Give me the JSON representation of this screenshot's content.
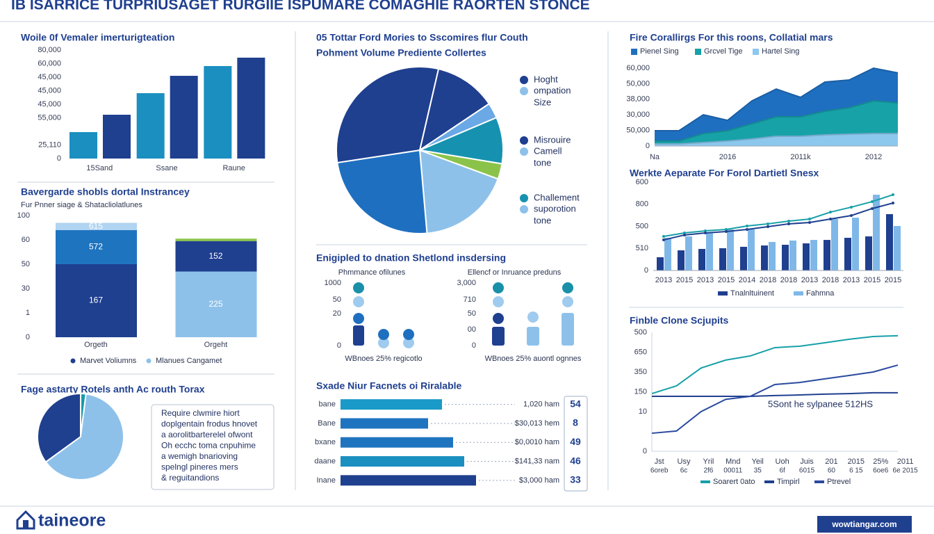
{
  "header": {
    "title": "IB ISARRICE TURPRIUSAGET RURGIIE ISPUMARE COMAGHIE RAORTEN STONCE"
  },
  "section_title": "Enigipled to dnation Shetlond insdersing",
  "note_box": {
    "lines": [
      "Require clwmire hiort",
      "doplgentain frodus hnovet",
      "a aorolitbarterelel ofwont",
      "Oh ecchc toma cnpuhime",
      "a wemigh bnarioving",
      "spelngl pineres mers",
      "& reguitandions"
    ]
  },
  "footer": {
    "logo": "taineore",
    "link": "wowtiangar.com"
  },
  "chart_data": [
    {
      "type": "bar",
      "title": "Woile 0f Vemaler imerturigteation",
      "categories": [
        "15Sand",
        "Ssane",
        "Raune"
      ],
      "series": [
        {
          "color": "#1a8fc0",
          "values": [
            19500,
            48200,
            68200
          ]
        },
        {
          "color": "#1f3f8f",
          "values": [
            32300,
            61000,
            74400
          ]
        }
      ],
      "ylim": [
        0,
        80000
      ],
      "yticks": [
        0,
        {
          "value": 10000,
          "label": "25,110"
        },
        {
          "value": 30000,
          "label": "55,000"
        },
        {
          "value": 40000,
          "label": "45,000"
        },
        {
          "value": 50000,
          "label": "45,000"
        },
        {
          "value": 60000,
          "label": "45,000"
        },
        {
          "value": 70000,
          "label": "60,000"
        },
        {
          "value": 80000,
          "label": "80,000"
        }
      ],
      "grid": false
    },
    {
      "type": "stacked_bar",
      "title": "Bavergarde shobls dortal Instrancey",
      "subtitle": "Fur Pnner siage & Shatacliolatlunes",
      "categories": [
        "Orgeth",
        "Orgeht"
      ],
      "series": [
        {
          "colors": [
            "#1f3f8f",
            "#8ec1ea"
          ],
          "values": [
            60,
            54
          ],
          "labels": [
            "167",
            "225"
          ]
        },
        {
          "colors": [
            "#1f74bf",
            "#1f3f8f"
          ],
          "values": [
            28,
            25
          ],
          "labels": [
            "572",
            "152"
          ]
        },
        {
          "colors": [
            "#b0d4f1",
            "#8bc34a"
          ],
          "values": [
            6,
            2
          ],
          "labels": [
            "615",
            null
          ]
        }
      ],
      "legend": [
        {
          "name": "Marvet Voliumns",
          "color": "#1f3f8f"
        },
        {
          "name": "Mlanues Cangamet",
          "color": "#8ec1ea"
        }
      ],
      "ylim": [
        0,
        100
      ],
      "yticks": [
        0,
        {
          "value": 20,
          "label": "1"
        },
        {
          "value": 40,
          "label": "30"
        },
        {
          "value": 60,
          "label": "50"
        },
        {
          "value": 80,
          "label": "60"
        },
        100
      ],
      "grid": false
    },
    {
      "type": "pie",
      "title": "Fage astarty Rotels anth Ac routh Torax",
      "values": [
        2,
        63,
        35
      ],
      "colors": [
        "#1a9aa8",
        "#8ec1ea",
        "#1f3f8f"
      ]
    },
    {
      "type": "pie",
      "title": "05 Tottar Ford Mories to Sscomires flur Couth",
      "subtitle": "Pohment Volume Prediente Collertes",
      "values": [
        12,
        3,
        9,
        3,
        18,
        24,
        31
      ],
      "colors": [
        "#1f3f8f",
        "#6aa8e6",
        "#1692b0",
        "#8bc34a",
        "#8ec1ea",
        "#1f6fc0",
        "#1f3f8f"
      ],
      "legend_groups": [
        {
          "colors": [
            "#1f3f8f",
            "#8ec1ea"
          ],
          "lines": [
            "Hoght",
            "ompation",
            "Size"
          ]
        },
        {
          "colors": [
            "#1f3f8f",
            "#8ec1ea"
          ],
          "lines": [
            "Misrouire",
            "Camell",
            "tone"
          ]
        },
        {
          "colors": [
            "#1692b0",
            "#8ec1ea"
          ],
          "lines": [
            "Challement",
            "suporotion",
            "tone"
          ]
        }
      ]
    },
    {
      "type": "dot_bar",
      "subtitle": "Phmmance ofilunes",
      "xlabel": "WBnoes 25% regicotlo",
      "ylim": [
        0,
        90
      ],
      "yticks": [
        0,
        {
          "value": 46,
          "label": "20"
        },
        {
          "value": 66,
          "label": "50"
        },
        {
          "value": 90,
          "label": "1000"
        }
      ],
      "series": [
        {
          "mark": "bar",
          "color": "#1f3f8f",
          "values": [
            29,
            null,
            null
          ]
        },
        {
          "mark": "dot",
          "color": "#1a8fa8",
          "values": [
            83,
            null,
            null
          ]
        },
        {
          "mark": "dot",
          "color": "#9fcbee",
          "values": [
            63,
            4,
            4
          ]
        },
        {
          "mark": "dot",
          "color": "#1f6fc0",
          "values": [
            39,
            16,
            16
          ]
        }
      ]
    },
    {
      "type": "dot_bar",
      "subtitle": "Ellencf or Inruance preduns",
      "xlabel": "WBnoes 25% auontl ognnes",
      "ylim": [
        0,
        90
      ],
      "yticks": [
        0,
        {
          "value": 23,
          "label": "00"
        },
        {
          "value": 46,
          "label": "50"
        },
        {
          "value": 66,
          "label": "710"
        },
        {
          "value": 90,
          "label": "3,000"
        }
      ],
      "series": [
        {
          "mark": "bar",
          "color": "#1f3f8f",
          "values": [
            27,
            null,
            null
          ]
        },
        {
          "mark": "bar",
          "color": "#8ec1ea",
          "values": [
            null,
            27,
            47
          ]
        },
        {
          "mark": "dot",
          "color": "#1a8fa8",
          "values": [
            83,
            null,
            83
          ]
        },
        {
          "mark": "dot",
          "color": "#9fcbee",
          "values": [
            63,
            41,
            63
          ]
        },
        {
          "mark": "dot",
          "color": "#1f3f8f",
          "values": [
            39,
            null,
            null
          ]
        }
      ]
    },
    {
      "type": "hbar",
      "title": "Sxade Niur Facnets oi Riralable",
      "categories": [
        "bane",
        "Bane",
        "bxane",
        "daane",
        "Inane"
      ],
      "values": [
        146,
        126,
        162,
        178,
        195
      ],
      "xlim": [
        0,
        200
      ],
      "colors": [
        "#1a9ac8",
        "#1f74bf",
        "#1f74bf",
        "#1a8fc0",
        "#1f3f8f"
      ],
      "amounts": [
        "1,020 ham",
        "$30,013 hem",
        "$0,0010 ham",
        "$141,33 nam",
        "$3,000 ham"
      ],
      "scores": [
        54,
        8,
        49,
        46,
        33
      ]
    },
    {
      "type": "area",
      "title": "Fire Corallirgs For this roons, Collatial mars",
      "categories": [
        "Na",
        null,
        null,
        "2016",
        null,
        null,
        "2011k",
        null,
        null,
        "2012",
        null
      ],
      "series": [
        {
          "name": "Pienel Sing",
          "color": "#1f6fc0",
          "values": [
            11800,
            11800,
            24100,
            19800,
            34800,
            43900,
            37500,
            49300,
            50900,
            60000,
            56300
          ]
        },
        {
          "name": "Grcvel Tige",
          "color": "#17a2a8",
          "values": [
            3800,
            3800,
            9600,
            11800,
            17100,
            22500,
            22500,
            26800,
            29500,
            34800,
            33200
          ]
        },
        {
          "name": "Hartel Sing",
          "color": "#8cc8ee",
          "values": [
            1600,
            1600,
            2700,
            3800,
            5400,
            7500,
            7500,
            8600,
            9100,
            9600,
            9600
          ]
        }
      ],
      "ylim": [
        0,
        60000
      ],
      "yticks": [
        0,
        {
          "value": 12000,
          "label": "50,000"
        },
        {
          "value": 24000,
          "label": "30,000"
        },
        {
          "value": 36000,
          "label": "38,000"
        },
        {
          "value": 48000,
          "label": "50,000"
        },
        {
          "value": 60000,
          "label": "60,000"
        }
      ],
      "grid": false
    },
    {
      "type": "combo",
      "title": "Werkte Aeparate For Forol Dartietl Snesx",
      "categories": [
        "2013",
        "2015",
        "2013",
        "2015",
        "2014",
        "2018",
        "2018",
        "2013",
        "2018",
        "2013",
        "2015",
        "2015"
      ],
      "series": [
        {
          "name": "Tnalnltuinent",
          "mark": "bar",
          "color": "#1f3f8f",
          "values": [
            150,
            228,
            244,
            252,
            268,
            283,
            291,
            307,
            346,
            370,
            386,
            638
          ]
        },
        {
          "name": "Fahmna",
          "mark": "bar",
          "color": "#7fb8e8",
          "values": [
            370,
            386,
            425,
            465,
            465,
            323,
            339,
            346,
            583,
            598,
            858,
            504
          ]
        },
        {
          "mark": "line",
          "color": "#17a0a8",
          "values": [
            386,
            425,
            449,
            465,
            504,
            528,
            559,
            583,
            661,
            717,
            780,
            858
          ]
        },
        {
          "mark": "line",
          "color": "#1f3f8f",
          "values": [
            346,
            402,
            425,
            441,
            465,
            496,
            528,
            543,
            583,
            622,
            701,
            764
          ]
        }
      ],
      "ylim": [
        0,
        1000
      ],
      "yticks": [
        0,
        {
          "value": 250,
          "label": "510"
        },
        {
          "value": 500,
          "label": "500"
        },
        {
          "value": 750,
          "label": "800"
        },
        {
          "value": 1000,
          "label": "600"
        }
      ],
      "grid": false
    },
    {
      "type": "line",
      "title": "Finble Clone Scjupits",
      "categories": [
        "Jst",
        "Usy",
        "Yril",
        "Mnd",
        "Yeil",
        "Uoh",
        "Juis",
        "201",
        "2015",
        "25%",
        "2011"
      ],
      "sublabels": [
        "6oreb",
        "6c",
        "2f6",
        "00011",
        "35",
        "6f",
        "6015",
        "60",
        "6 15",
        "6oe6",
        "6e 2015"
      ],
      "series": [
        {
          "name": "Soarert 0ato",
          "color": "#17a0a8",
          "values": [
            291,
            330,
            420,
            460,
            481,
            523,
            530,
            547,
            565,
            579,
            583
          ]
        },
        {
          "name": "Timpirl",
          "color": "#1f3f8f",
          "values": [
            277,
            277,
            277,
            277,
            277,
            281,
            284,
            288,
            291,
            295,
            295
          ]
        },
        {
          "name": "Ptrevel",
          "color": "#2a4a9f",
          "values": [
            91,
            102,
            200,
            262,
            277,
            337,
            347,
            365,
            382,
            400,
            435
          ]
        }
      ],
      "annotation": "5Sont he sylpanee 512HS",
      "ylim": [
        0,
        600
      ],
      "yticks": [
        0,
        {
          "value": 200,
          "label": "10"
        },
        {
          "value": 300,
          "label": "150"
        },
        {
          "value": 400,
          "label": "350"
        },
        {
          "value": 500,
          "label": "650"
        },
        {
          "value": 600,
          "label": "500"
        }
      ],
      "grid": false
    }
  ]
}
